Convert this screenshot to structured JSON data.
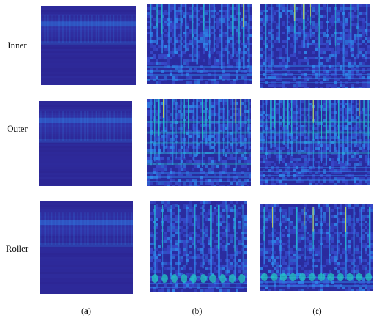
{
  "rows": [
    {
      "label": "Inner"
    },
    {
      "label": "Outer"
    },
    {
      "label": "Roller"
    }
  ],
  "columns": [
    {
      "open": "(",
      "letter": "a",
      "close": ")"
    },
    {
      "open": "(",
      "letter": "b",
      "close": ")"
    },
    {
      "open": "(",
      "letter": "c",
      "close": ")"
    }
  ],
  "panels": [
    {
      "row": 0,
      "col": 0,
      "kind": "spectrogram-a",
      "alt": "Inner (a)"
    },
    {
      "row": 0,
      "col": 1,
      "kind": "scalogram-b-inner",
      "alt": "Inner (b)"
    },
    {
      "row": 0,
      "col": 2,
      "kind": "scalogram-c-inner",
      "alt": "Inner (c)"
    },
    {
      "row": 1,
      "col": 0,
      "kind": "spectrogram-a",
      "alt": "Outer (a)"
    },
    {
      "row": 1,
      "col": 1,
      "kind": "scalogram-b-outer",
      "alt": "Outer (b)"
    },
    {
      "row": 1,
      "col": 2,
      "kind": "scalogram-c-outer",
      "alt": "Outer (c)"
    },
    {
      "row": 2,
      "col": 0,
      "kind": "spectrogram-a",
      "alt": "Roller (a)"
    },
    {
      "row": 2,
      "col": 1,
      "kind": "scalogram-b-roller",
      "alt": "Roller (b)"
    },
    {
      "row": 2,
      "col": 2,
      "kind": "scalogram-c-roller",
      "alt": "Roller (c)"
    }
  ],
  "colors": {
    "background": "#ffffff",
    "deep": "#2a1f8a",
    "mid": "#3a4fd0",
    "light": "#2f8ff0",
    "cyan": "#22c8c0",
    "yellow": "#e8e040"
  }
}
